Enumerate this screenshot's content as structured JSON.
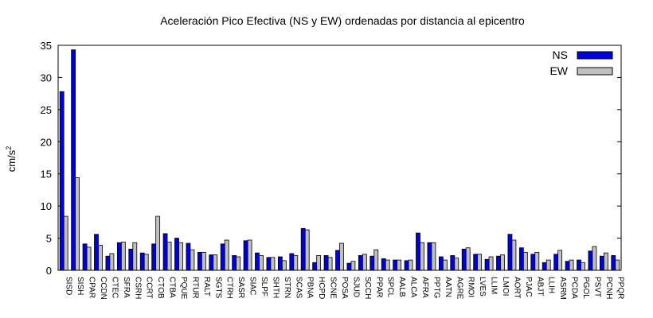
{
  "chart_data": {
    "type": "bar",
    "title": "Aceleración Pico Efectiva (NS y EW) ordenadas por distancia al epicentro",
    "xlabel": "",
    "ylabel_base": "cm/s",
    "ylabel_exp": "2",
    "ylim": [
      0,
      35
    ],
    "yticks": [
      "0",
      "5",
      "10",
      "15",
      "20",
      "25",
      "30",
      "35"
    ],
    "legend_position": "top-right",
    "grid": false,
    "categories": [
      "SISD",
      "SISH",
      "CPAR",
      "CCDN",
      "CTEC",
      "SFRA",
      "CSRH",
      "CCRT",
      "CTOB",
      "CTBA",
      "PQUE",
      "RTUR",
      "RALT",
      "SGTS",
      "CTRH",
      "SASR",
      "SIAC",
      "SLPF",
      "SHTH",
      "STRN",
      "SCAS",
      "PBNA",
      "HCPD",
      "SCNE",
      "POSA",
      "SJUD",
      "SCCH",
      "PPAR",
      "SPCL",
      "AALB",
      "ALCA",
      "AFRA",
      "PPTG",
      "AATN",
      "AGRE",
      "RMOI",
      "LVES",
      "LLIM",
      "LMOI",
      "AORT",
      "PJAC",
      "ABJT",
      "LLIH",
      "ASRM",
      "PCDA",
      "PGOL",
      "PSVT",
      "PCNH",
      "PPQR"
    ],
    "series": [
      {
        "name": "NS",
        "color": "#0000dd",
        "values": [
          27.8,
          34.3,
          4.1,
          5.6,
          2.2,
          4.3,
          3.3,
          2.7,
          4.1,
          5.7,
          5.0,
          4.2,
          2.8,
          2.4,
          4.1,
          2.3,
          4.6,
          2.7,
          2.0,
          2.1,
          2.6,
          6.5,
          1.2,
          2.3,
          3.1,
          1.1,
          2.3,
          2.2,
          1.8,
          1.6,
          1.5,
          5.8,
          4.3,
          2.1,
          2.3,
          3.3,
          2.5,
          1.7,
          2.2,
          5.6,
          3.5,
          2.5,
          1.2,
          2.5,
          1.4,
          1.6,
          3.0,
          2.2,
          2.3
        ]
      },
      {
        "name": "EW",
        "color": "#c0c0c0",
        "values": [
          8.4,
          14.4,
          3.6,
          3.9,
          2.6,
          4.4,
          4.3,
          2.5,
          8.4,
          4.4,
          4.3,
          3.2,
          2.8,
          2.4,
          4.7,
          2.1,
          4.7,
          2.3,
          2.0,
          1.5,
          2.3,
          6.3,
          2.3,
          2.0,
          4.2,
          1.4,
          2.5,
          3.2,
          1.6,
          1.6,
          1.6,
          4.3,
          4.3,
          1.6,
          1.9,
          3.5,
          2.5,
          2.1,
          2.4,
          4.7,
          2.8,
          2.8,
          1.6,
          3.1,
          1.6,
          1.2,
          3.7,
          2.7,
          1.6
        ]
      }
    ]
  }
}
